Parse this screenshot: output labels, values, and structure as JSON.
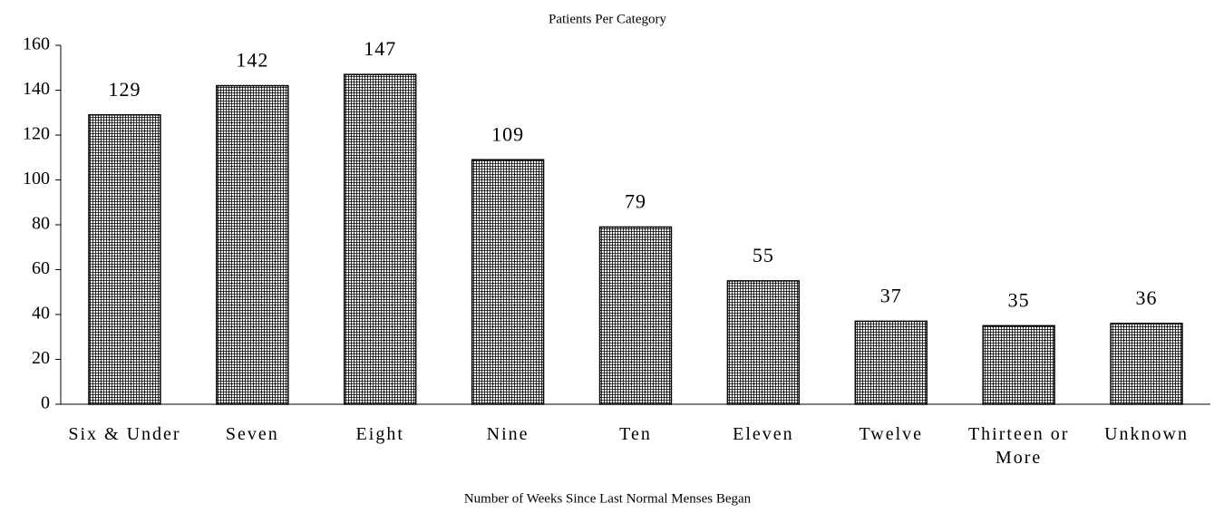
{
  "chart_data": {
    "type": "bar",
    "title": "Patients Per Category",
    "x_label": "Number of Weeks Since Last Normal Menses Began",
    "categories": [
      "Six & Under",
      "Seven",
      "Eight",
      "Nine",
      "Ten",
      "Eleven",
      "Twelve",
      "Thirteen or More",
      "Unknown"
    ],
    "values": [
      129,
      142,
      147,
      109,
      79,
      55,
      37,
      35,
      36
    ],
    "color": "#000000",
    "ylim": [
      0,
      160
    ],
    "yticks": [
      0,
      20,
      40,
      60,
      80,
      100,
      120,
      140,
      160
    ],
    "grid": false
  }
}
